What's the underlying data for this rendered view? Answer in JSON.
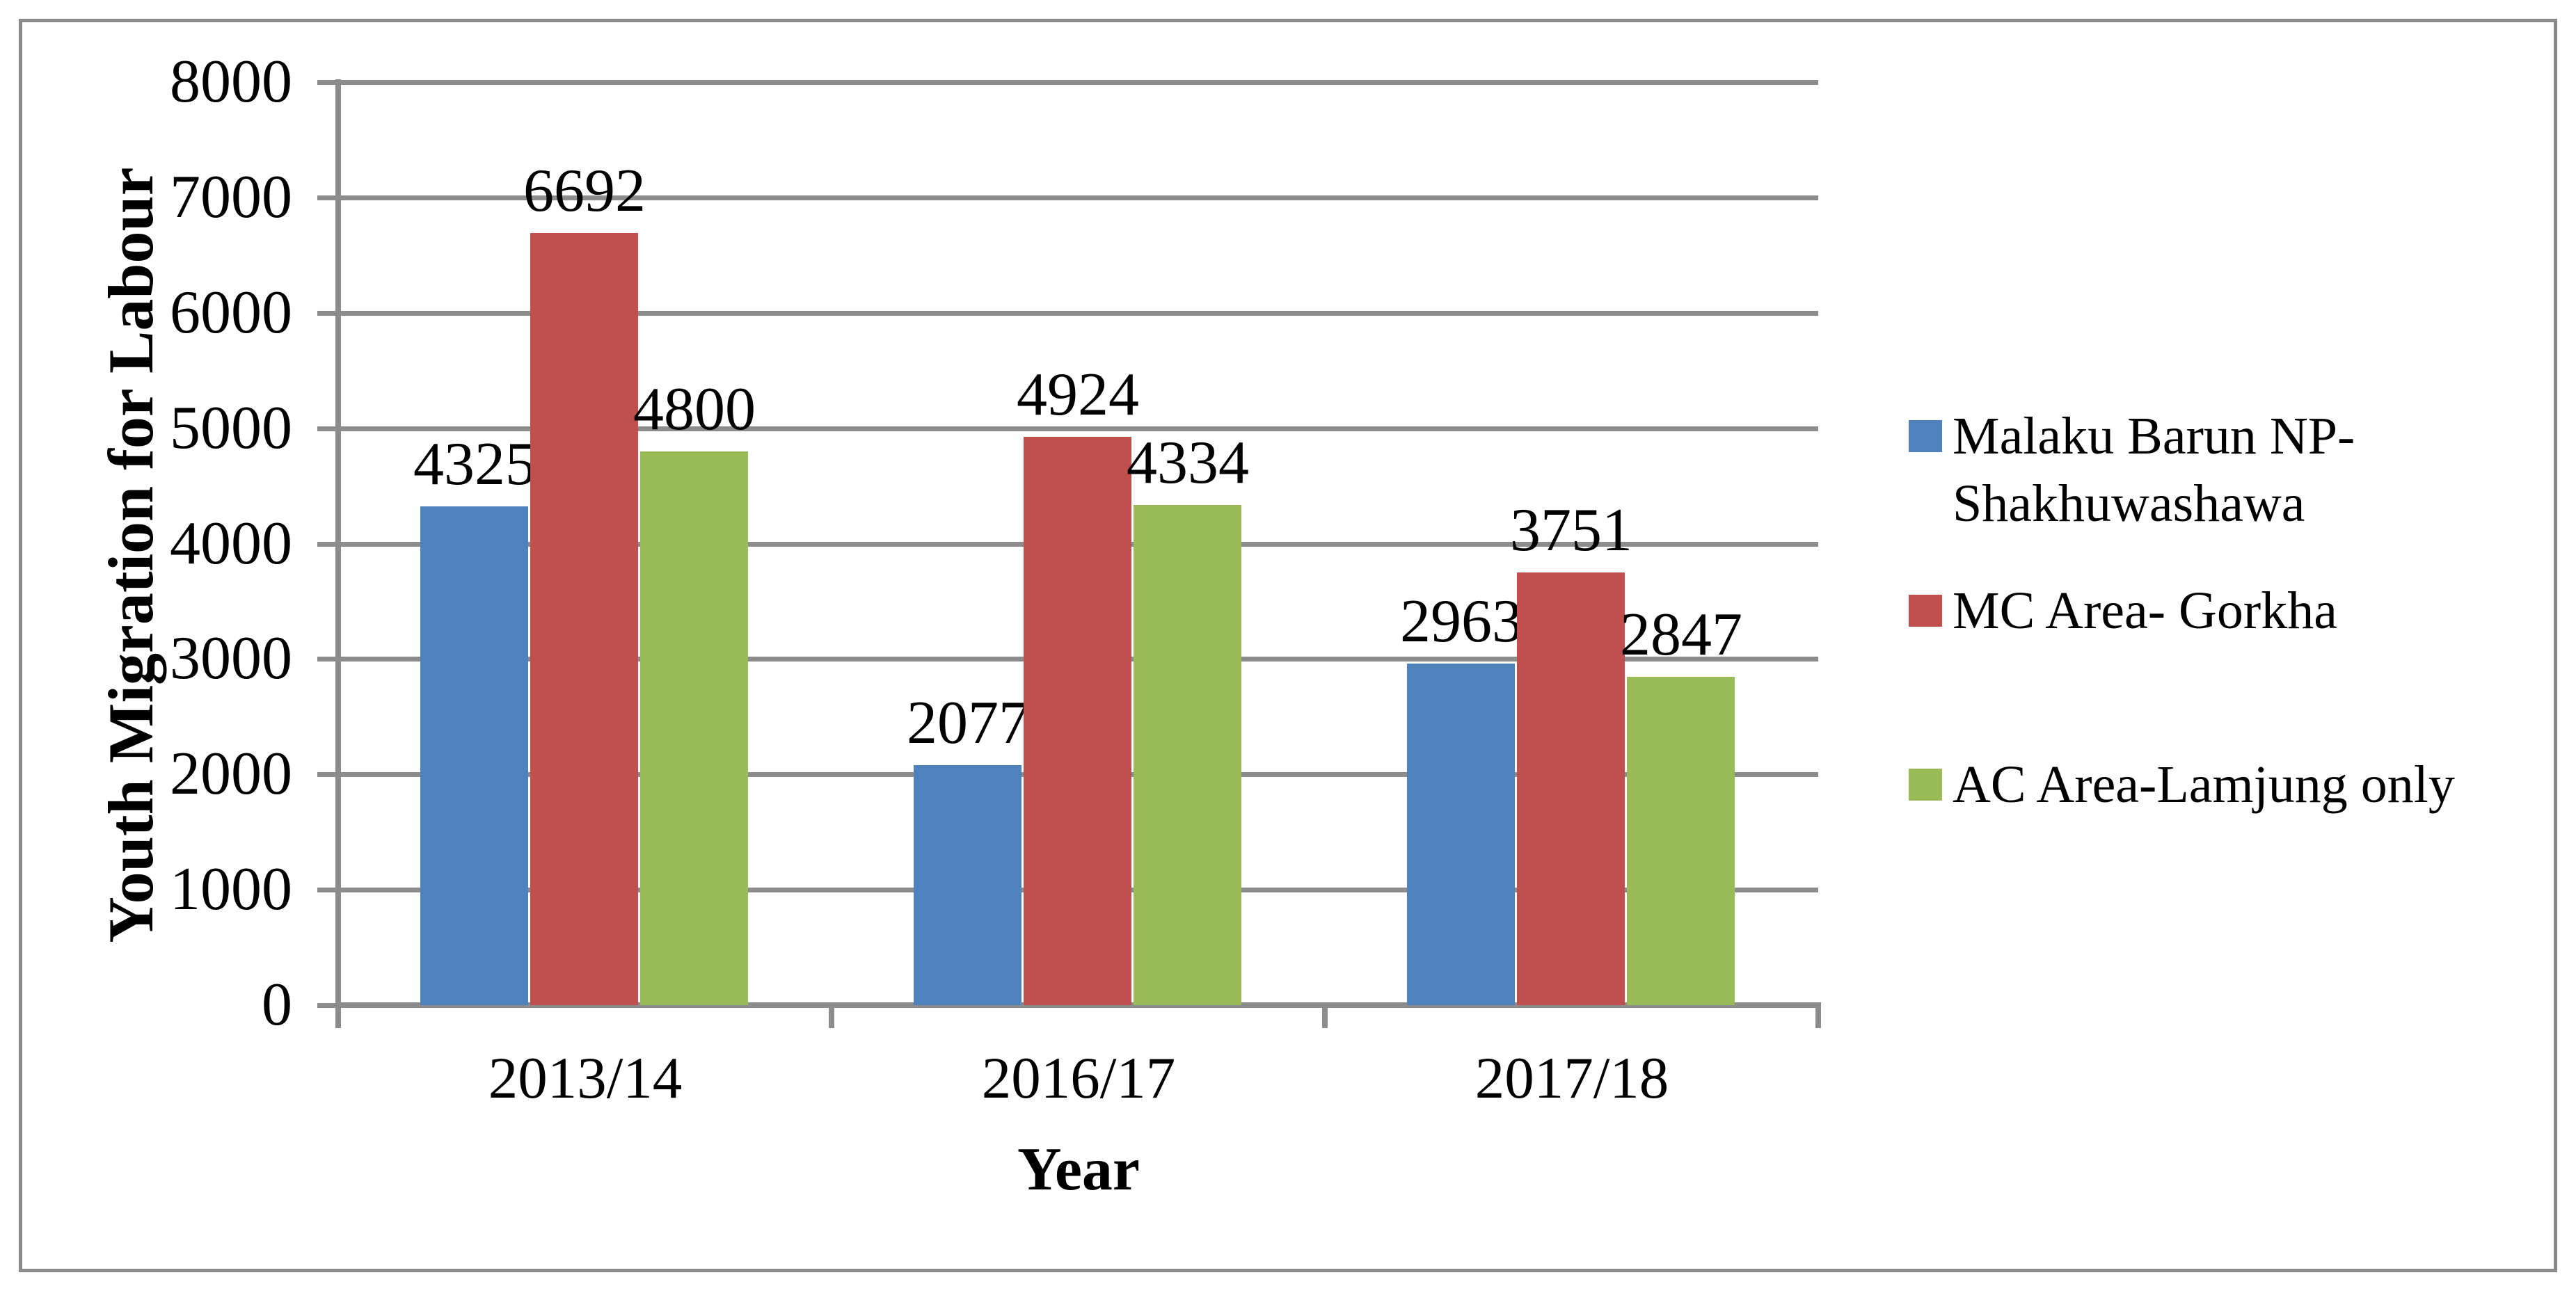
{
  "chart_data": {
    "type": "bar",
    "title": "",
    "categories": [
      "2013/14",
      "2016/17",
      "2017/18"
    ],
    "series": [
      {
        "name": "Malaku Barun NP-Shakhuwashawa",
        "legend_lines": [
          "Malaku Barun NP-",
          "Shakhuwashawa"
        ],
        "color": "#4F81BD",
        "values": [
          4325,
          2077,
          2963
        ]
      },
      {
        "name": "MC Area- Gorkha",
        "legend_lines": [
          "MC Area- Gorkha"
        ],
        "color": "#C0504D",
        "values": [
          6692,
          4924,
          3751
        ]
      },
      {
        "name": "AC Area-Lamjung only",
        "legend_lines": [
          "AC Area-Lamjung only"
        ],
        "color": "#9BBB59",
        "values": [
          4800,
          4334,
          2847
        ]
      }
    ],
    "xlabel": "Year",
    "ylabel": "Youth Migration for Labour",
    "ylim": [
      0,
      8000
    ],
    "y_ticks": [
      0,
      1000,
      2000,
      3000,
      4000,
      5000,
      6000,
      7000,
      8000
    ],
    "grid": "horizontal",
    "legend_position": "right",
    "colors": {
      "gridline": "#8C8C8C",
      "axis": "#8C8C8C",
      "outer_border": "#8A8A8A",
      "text": "#000000",
      "background": "#FFFFFF"
    }
  }
}
